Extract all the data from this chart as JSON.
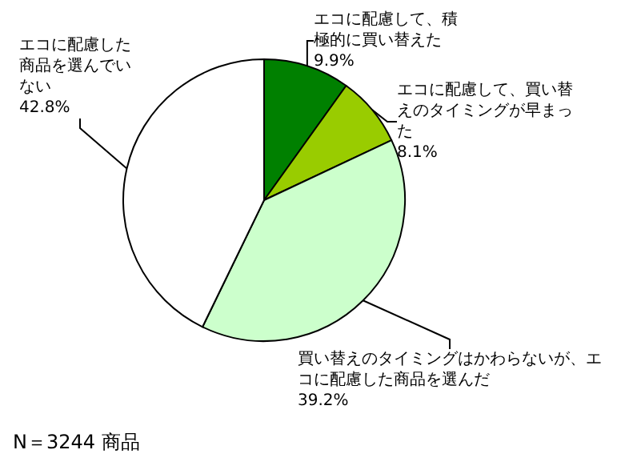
{
  "chart_data": {
    "type": "pie",
    "categories": [
      "エコに配慮して、積極的に買い替えた",
      "エコに配慮して、買い替えのタイミングが早まった",
      "買い替えのタイミングはかわらないが、エコに配慮した商品を選んだ",
      "エコに配慮した商品を選んでいない"
    ],
    "values": [
      9.9,
      8.1,
      39.2,
      42.8
    ],
    "value_labels": [
      "9.9%",
      "8.1%",
      "39.2%",
      "42.8%"
    ],
    "colors": [
      "#008000",
      "#99cc00",
      "#ccffcc",
      "#ffffff"
    ],
    "annotations": [
      "N＝3244 商品"
    ],
    "legend": false
  }
}
